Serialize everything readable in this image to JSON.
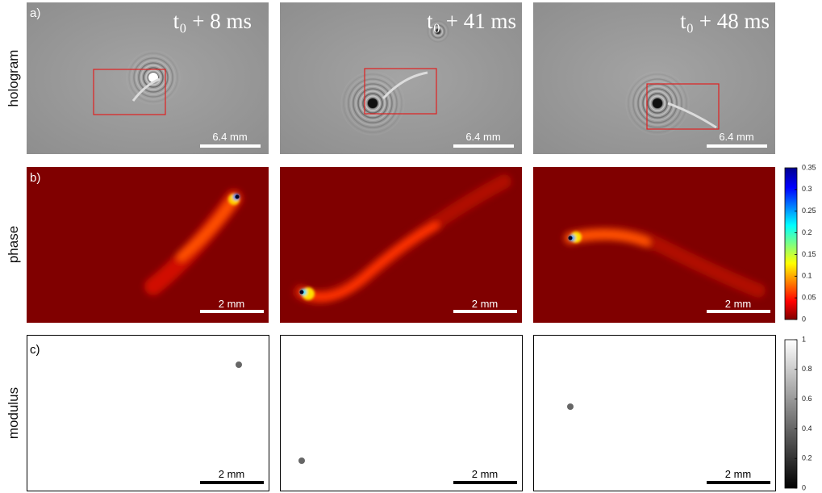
{
  "row_labels": [
    "hologram",
    "phase",
    "modulus"
  ],
  "panel_labels": [
    "a)",
    "b)",
    "c)"
  ],
  "time_labels": [
    "t₀ + 8 ms",
    "t₀ + 41 ms",
    "t₀ + 48 ms"
  ],
  "scale_bars": {
    "hologram": "6.4 mm",
    "phase": "2 mm",
    "modulus": "2 mm"
  },
  "colorbars": {
    "phase": {
      "range": [
        0,
        0.35
      ],
      "ticks": [
        0,
        0.05,
        0.1,
        0.15,
        0.2,
        0.25,
        0.3,
        0.35
      ],
      "colormap": "jet"
    },
    "modulus": {
      "range": [
        0,
        1
      ],
      "ticks": [
        0,
        0.2,
        0.4,
        0.6,
        0.8,
        1
      ],
      "colormap": "gray"
    }
  }
}
